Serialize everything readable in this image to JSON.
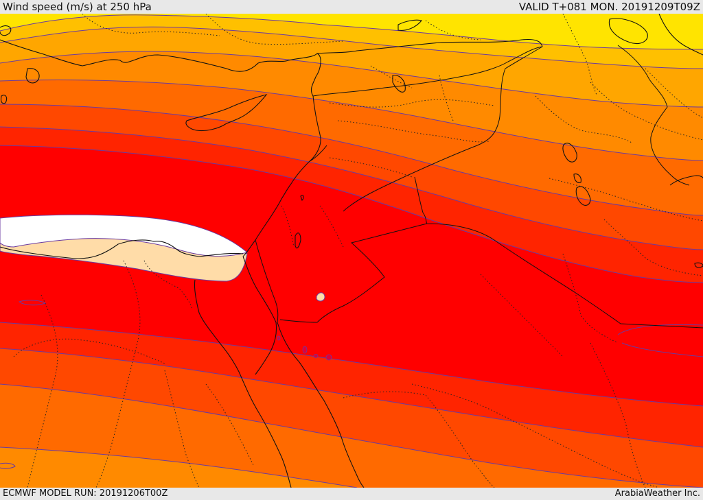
{
  "header": {
    "title": "Wind speed (m/s) at 250 hPa",
    "valid": "VALID T+081 MON. 20191209T09Z"
  },
  "footer": {
    "model_run": "ECMWF MODEL RUN: 20191206T00Z",
    "credit": "ArabiaWeather Inc."
  },
  "colors": {
    "band_yellow": "#ffe400",
    "band_gold": "#ffc000",
    "band_amber": "#ffa600",
    "band_orange": "#ff8a00",
    "band_dark_orange": "#ff6a00",
    "band_red_orange": "#ff4800",
    "band_scarlet": "#ff2400",
    "band_red": "#ff0000",
    "jet_core_cream": "#ffdca8",
    "jet_core_white": "#ffffff",
    "contour_line": "#6a3aa0",
    "border_line": "#111111"
  }
}
